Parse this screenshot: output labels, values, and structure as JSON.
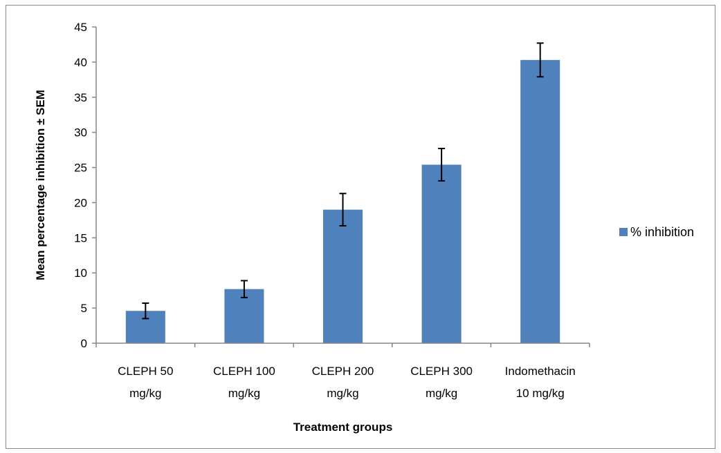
{
  "chart_data": {
    "type": "bar",
    "title": "",
    "xlabel": "Treatment groups",
    "ylabel": "Mean percentage inhibition ± SEM",
    "ylim": [
      0,
      45
    ],
    "yticks": [
      0,
      5,
      10,
      15,
      20,
      25,
      30,
      35,
      40,
      45
    ],
    "grid": false,
    "legend_position": "right",
    "categories": [
      [
        "CLEPH 50",
        "mg/kg"
      ],
      [
        "CLEPH 100",
        "mg/kg"
      ],
      [
        "CLEPH 200",
        "mg/kg"
      ],
      [
        "CLEPH 300",
        "mg/kg"
      ],
      [
        "Indomethacin",
        "10 mg/kg"
      ]
    ],
    "series": [
      {
        "name": "% inhibition",
        "color": "#4f81bd",
        "values": [
          4.6,
          7.7,
          19.0,
          25.4,
          40.3
        ],
        "errors": [
          1.1,
          1.2,
          2.3,
          2.3,
          2.4
        ]
      }
    ]
  }
}
